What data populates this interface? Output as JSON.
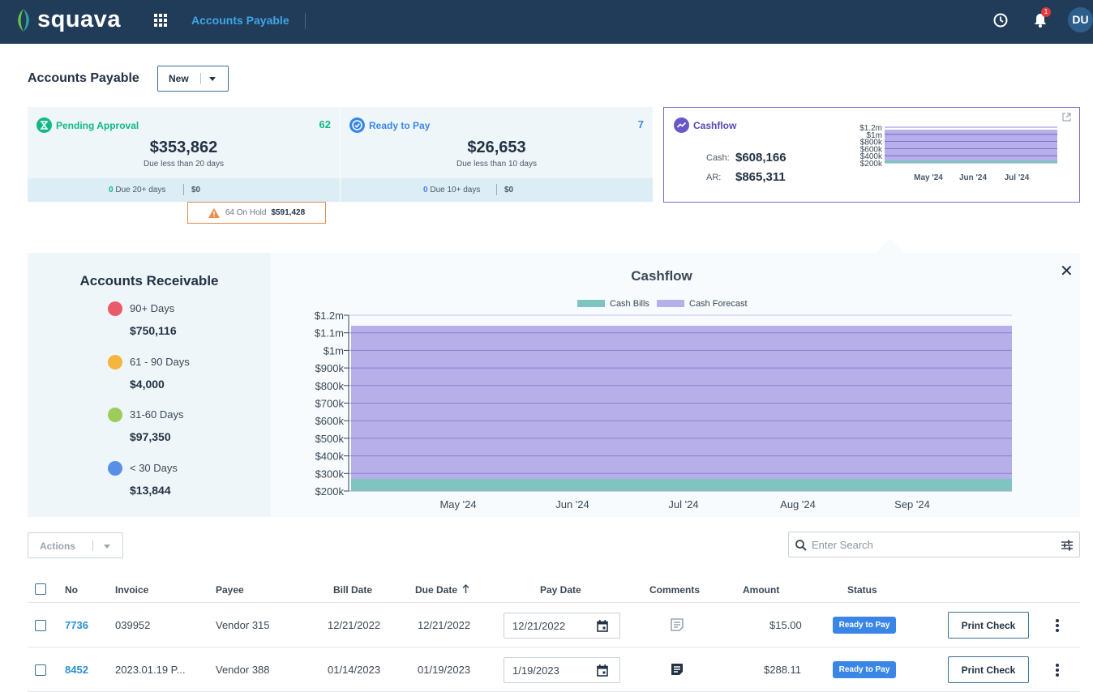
{
  "app": {
    "brand": "squava",
    "section": "Accounts Payable",
    "notification_count": "1",
    "user_initials": "DU"
  },
  "page": {
    "title": "Accounts Payable",
    "new_label": "New"
  },
  "pending": {
    "title": "Pending Approval",
    "count": "62",
    "amount": "$353,862",
    "due": "Due less than 20 days",
    "footer_count": "0",
    "footer_label": "Due 20+ days",
    "footer_amount": "$0",
    "color": "#12b886"
  },
  "ready": {
    "title": "Ready to Pay",
    "count": "7",
    "amount": "$26,653",
    "due": "Due less than 10 days",
    "footer_count": "0",
    "footer_label": "Due 10+ days",
    "footer_amount": "$0",
    "color": "#3a86e6"
  },
  "onhold": {
    "label": "64 On Hold",
    "amount": "$591,428"
  },
  "cashflow_card": {
    "title": "Cashflow",
    "cash_label": "Cash:",
    "cash_value": "$608,166",
    "ar_label": "AR:",
    "ar_value": "$865,311",
    "yticks": [
      "$1.2m",
      "$1m",
      "$800k",
      "$600k",
      "$400k",
      "$200k"
    ],
    "months": [
      "May '24",
      "Jun '24",
      "Jul '24"
    ]
  },
  "receivable": {
    "title": "Accounts Receivable",
    "items": [
      {
        "label": "90+ Days",
        "amount": "$750,116",
        "color": "#ea5a6a"
      },
      {
        "label": "61 - 90 Days",
        "amount": "$4,000",
        "color": "#f5b53e"
      },
      {
        "label": "31-60 Days",
        "amount": "$97,350",
        "color": "#9bcc5c"
      },
      {
        "label": "< 30 Days",
        "amount": "$13,844",
        "color": "#5a8fe8"
      }
    ]
  },
  "chart_data": {
    "type": "area",
    "title": "Cashflow",
    "xlabel": "",
    "ylabel": "",
    "x": [
      "May '24",
      "Jun '24",
      "Jul '24",
      "Aug '24",
      "Sep '24"
    ],
    "series": [
      {
        "name": "Cash Bills",
        "values": [
          270000,
          270000,
          270000,
          270000,
          270000
        ],
        "color": "#7fc4c0"
      },
      {
        "name": "Cash Forecast",
        "values": [
          1140000,
          1140000,
          1140000,
          1140000,
          1140000
        ],
        "color": "#b7afe9"
      }
    ],
    "yticks": [
      "$1.2m",
      "$1.1m",
      "$1m",
      "$900k",
      "$800k",
      "$700k",
      "$600k",
      "$500k",
      "$400k",
      "$300k",
      "$200k"
    ],
    "ylim": [
      200000,
      1200000
    ],
    "grid": true,
    "legend": "top"
  },
  "table": {
    "actions_label": "Actions",
    "search_placeholder": "Enter Search",
    "headers": {
      "no": "No",
      "invoice": "Invoice",
      "payee": "Payee",
      "bill_date": "Bill Date",
      "due_date": "Due Date",
      "pay_date": "Pay Date",
      "comments": "Comments",
      "amount": "Amount",
      "status": "Status"
    },
    "rows": [
      {
        "no": "7736",
        "invoice": "039952",
        "payee": "Vendor 315",
        "bill_date": "12/21/2022",
        "due_date": "12/21/2022",
        "pay_date": "12/21/2022",
        "amount": "$15.00",
        "status": "Ready to Pay",
        "action": "Print Check"
      },
      {
        "no": "8452",
        "invoice": "2023.01.19 P...",
        "payee": "Vendor 388",
        "bill_date": "01/14/2023",
        "due_date": "01/19/2023",
        "pay_date": "1/19/2023",
        "amount": "$288.11",
        "status": "Ready to Pay",
        "action": "Print Check"
      }
    ]
  }
}
